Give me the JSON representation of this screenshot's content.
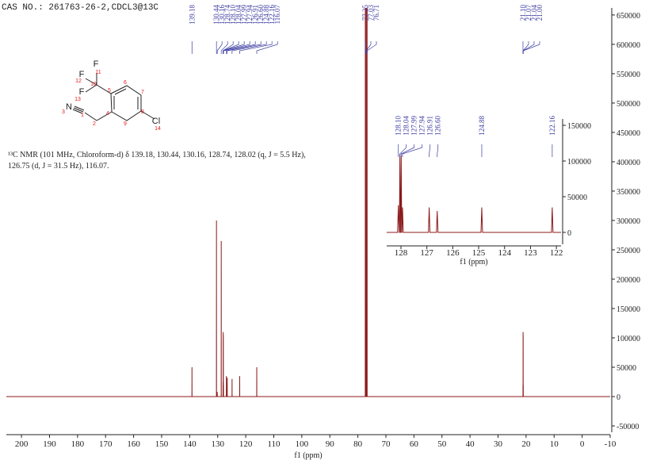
{
  "chart_data": [
    {
      "type": "line",
      "title": "CAS NO.: 261763-26-2,CDCL3@13C",
      "x_label": "f1 (ppm)",
      "xlim": [
        205.4,
        -10
      ],
      "ylim": [
        -60800,
        662000
      ],
      "xticks": [
        200,
        190,
        180,
        170,
        160,
        150,
        140,
        130,
        120,
        110,
        100,
        90,
        80,
        70,
        60,
        50,
        40,
        30,
        20,
        10,
        0,
        -10
      ],
      "yticks": [
        -50000,
        0,
        50000,
        100000,
        150000,
        200000,
        250000,
        300000,
        350000,
        400000,
        450000,
        500000,
        550000,
        600000,
        650000
      ],
      "color": "#8b1a1a",
      "x": [
        205.4,
        139.2,
        139.18,
        139.16,
        130.46,
        130.44,
        130.42,
        130.18,
        130.16,
        130.14,
        128.76,
        128.74,
        128.72,
        128.12,
        128.1,
        128.08,
        128.06,
        128.04,
        128.02,
        128.01,
        127.99,
        127.97,
        127.96,
        127.94,
        127.92,
        126.93,
        126.91,
        126.89,
        126.62,
        126.6,
        126.58,
        124.9,
        124.88,
        124.86,
        122.18,
        122.16,
        122.14,
        116.09,
        116.07,
        116.05,
        77.37,
        77.35,
        77.33,
        77.05,
        77.03,
        77.01,
        76.73,
        76.71,
        76.69,
        21.11,
        21.1,
        21.09,
        21.08,
        21.07,
        21.06,
        21.05,
        21.04,
        21.03,
        21.01,
        21.0,
        20.99,
        -10
      ],
      "values": [
        0,
        0,
        50000,
        0,
        0,
        300000,
        0,
        0,
        8000,
        0,
        0,
        265000,
        0,
        0,
        25000,
        0,
        0,
        110000,
        0,
        0,
        105000,
        0,
        0,
        20000,
        0,
        0,
        35000,
        0,
        0,
        32000,
        0,
        0,
        30000,
        0,
        0,
        35000,
        0,
        0,
        50000,
        0,
        0,
        900000,
        0,
        0,
        900000,
        0,
        0,
        900000,
        0,
        0,
        20000,
        0,
        0,
        110000,
        0,
        0,
        105000,
        0,
        0,
        20000,
        0,
        0
      ],
      "peak_labels": [
        "139.18",
        "130.44",
        "130.16",
        "128.74",
        "128.10",
        "128.04",
        "127.99",
        "127.94",
        "126.91",
        "126.60",
        "124.88",
        "122.16",
        "116.07",
        "77.35",
        "77.03",
        "76.71",
        "21.10",
        "21.07",
        "21.04",
        "21.00"
      ],
      "annotations": [
        "¹³C NMR (101 MHz, Chloroform-d) δ 139.18, 130.44, 130.16, 128.74, 128.02 (q, J = 5.5 Hz),",
        "126.75 (d, J = 31.5 Hz), 116.07."
      ],
      "structure_labels": [
        "F",
        "11",
        "F",
        "12",
        "10",
        "F",
        "13",
        "N",
        "3",
        "1",
        "2",
        "5",
        "6",
        "7",
        "8",
        "9",
        "4",
        "Cl",
        "14"
      ]
    },
    {
      "type": "line",
      "x_label": "f1 (ppm)",
      "xlim": [
        128.55,
        121.82
      ],
      "ylim": [
        -16700,
        158900
      ],
      "xticks": [
        128,
        127,
        126,
        125,
        124,
        123,
        122
      ],
      "yticks": [
        0,
        50000,
        100000,
        150000
      ],
      "color": "#8b1a1a",
      "x": [
        128.55,
        128.13,
        128.1,
        128.07,
        128.06,
        128.04,
        128.02,
        128.01,
        127.99,
        127.97,
        127.96,
        127.94,
        127.91,
        126.94,
        126.91,
        126.88,
        126.63,
        126.6,
        126.57,
        124.91,
        124.88,
        124.85,
        122.19,
        122.16,
        122.13,
        121.82
      ],
      "values": [
        0,
        0,
        38000,
        0,
        0,
        110000,
        0,
        0,
        107000,
        0,
        0,
        35000,
        0,
        0,
        35000,
        0,
        0,
        30000,
        0,
        0,
        35000,
        0,
        0,
        35000,
        0,
        0
      ],
      "peak_labels": [
        "128.10",
        "128.04",
        "127.99",
        "127.94",
        "126.91",
        "126.60",
        "124.88",
        "122.16"
      ]
    }
  ]
}
